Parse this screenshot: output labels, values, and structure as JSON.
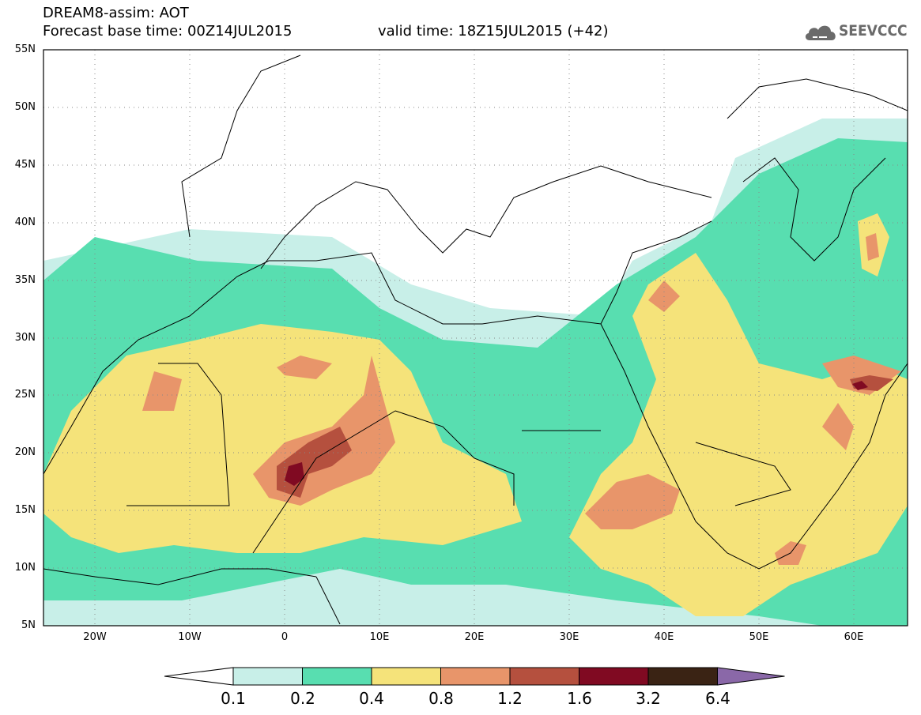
{
  "header": {
    "line1": "DREAM8-assim: AOT",
    "line2": "Forecast base time: 00Z14JUL2015",
    "valid": "valid time: 18Z15JUL2015 (+42)"
  },
  "logo": {
    "text": "SEEVCCC",
    "icon": "cloud-icon"
  },
  "map": {
    "variable": "AOT",
    "lat_labels": [
      "55N",
      "50N",
      "45N",
      "40N",
      "35N",
      "30N",
      "25N",
      "20N",
      "15N",
      "10N",
      "5N"
    ],
    "lon_labels": [
      "20W",
      "10W",
      "0",
      "10E",
      "20E",
      "30E",
      "40E",
      "50E",
      "60E"
    ],
    "extent": {
      "lon": [
        -25,
        65
      ],
      "lat": [
        5,
        55
      ]
    },
    "grid": "dotted"
  },
  "colorbar": {
    "labels": [
      "0.1",
      "0.2",
      "0.4",
      "0.8",
      "1.2",
      "1.6",
      "3.2",
      "6.4"
    ],
    "colors": [
      "#ffffff",
      "#c8efe8",
      "#58deb0",
      "#f5e37a",
      "#e8956a",
      "#b5503e",
      "#800a22",
      "#3a2314",
      "#8a68a8"
    ]
  }
}
